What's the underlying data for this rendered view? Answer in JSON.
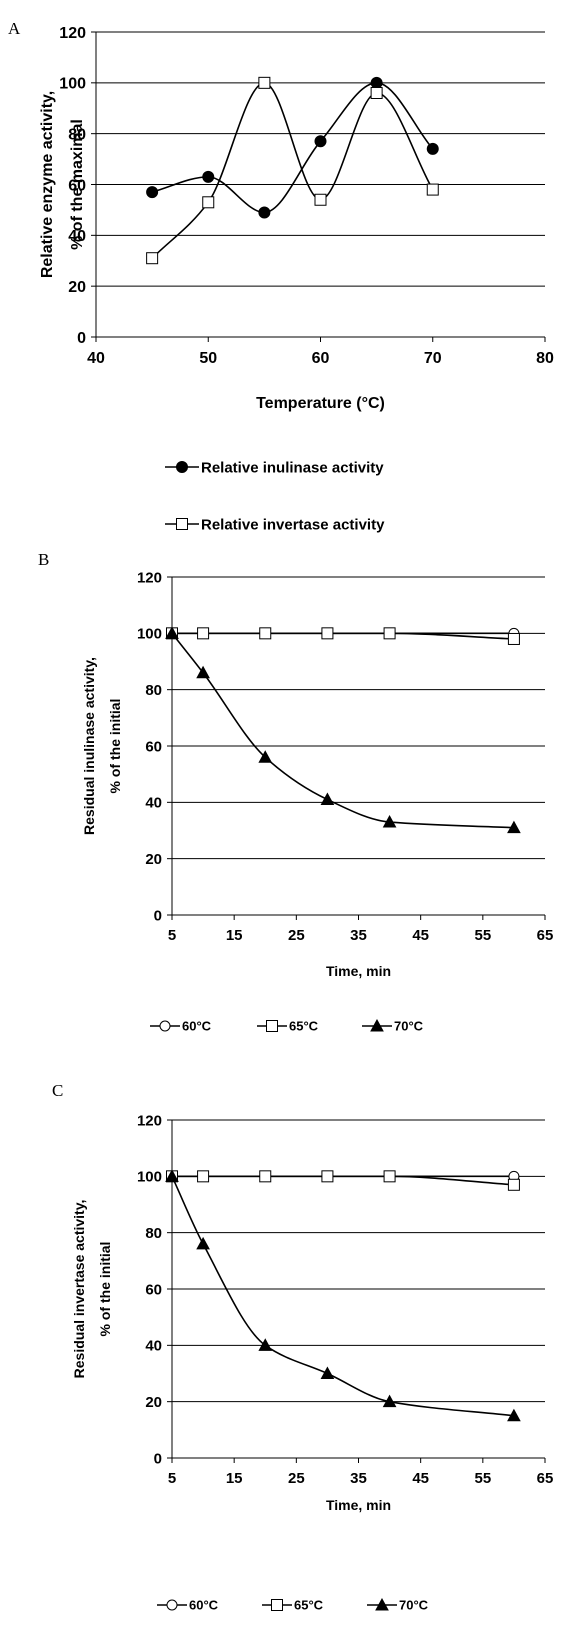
{
  "chart_data": [
    {
      "panel_label": "A",
      "type": "line",
      "ylabel": [
        "Relative enzyme activity,",
        "% of  the maximal"
      ],
      "xlabel": "Temperature (°C)",
      "xlim": [
        40,
        80
      ],
      "xticks": [
        40,
        50,
        60,
        70,
        80
      ],
      "ylim": [
        0,
        120
      ],
      "yticks": [
        0,
        20,
        40,
        60,
        80,
        100,
        120
      ],
      "grid": "horizontal",
      "smooth": true,
      "legend_position": "bottom",
      "series": [
        {
          "name": "Relative inulinase activity",
          "marker": "filled-circle",
          "x": [
            45,
            50,
            55,
            60,
            65,
            70
          ],
          "y": [
            57,
            63,
            49,
            77,
            100,
            74
          ]
        },
        {
          "name": "Relative invertase activity",
          "marker": "open-square",
          "x": [
            45,
            50,
            55,
            60,
            65,
            70
          ],
          "y": [
            31,
            53,
            100,
            54,
            96,
            58
          ]
        }
      ]
    },
    {
      "panel_label": "B",
      "type": "line",
      "ylabel": [
        "Residual inulinase activity,",
        "% of  the initial"
      ],
      "xlabel": "Time, min",
      "xlim": [
        5,
        65
      ],
      "xticks": [
        5,
        15,
        25,
        35,
        45,
        55,
        65
      ],
      "ylim": [
        0,
        120
      ],
      "yticks": [
        0,
        20,
        40,
        60,
        80,
        100,
        120
      ],
      "grid": "horizontal",
      "smooth": true,
      "legend_position": "bottom",
      "series": [
        {
          "name": "60°C",
          "marker": "open-circle",
          "x": [
            5,
            10,
            20,
            30,
            40,
            60
          ],
          "y": [
            100,
            100,
            100,
            100,
            100,
            100
          ]
        },
        {
          "name": "65°C",
          "marker": "open-square",
          "x": [
            5,
            10,
            20,
            30,
            40,
            60
          ],
          "y": [
            100,
            100,
            100,
            100,
            100,
            98
          ]
        },
        {
          "name": "70°C",
          "marker": "filled-triangle",
          "x": [
            5,
            10,
            20,
            30,
            40,
            60
          ],
          "y": [
            100,
            86,
            56,
            41,
            33,
            31
          ]
        }
      ]
    },
    {
      "panel_label": "C",
      "type": "line",
      "ylabel": [
        "Residual invertase activity,",
        "% of  the initial"
      ],
      "xlabel": "Time, min",
      "xlim": [
        5,
        65
      ],
      "xticks": [
        5,
        15,
        25,
        35,
        45,
        55,
        65
      ],
      "ylim": [
        0,
        120
      ],
      "yticks": [
        0,
        20,
        40,
        60,
        80,
        100,
        120
      ],
      "grid": "horizontal",
      "smooth": true,
      "legend_position": "bottom",
      "series": [
        {
          "name": "60°C",
          "marker": "open-circle",
          "x": [
            5,
            10,
            20,
            30,
            40,
            60
          ],
          "y": [
            100,
            100,
            100,
            100,
            100,
            100
          ]
        },
        {
          "name": "65°C",
          "marker": "open-square",
          "x": [
            5,
            10,
            20,
            30,
            40,
            60
          ],
          "y": [
            100,
            100,
            100,
            100,
            100,
            97
          ]
        },
        {
          "name": "70°C",
          "marker": "filled-triangle",
          "x": [
            5,
            10,
            20,
            30,
            40,
            60
          ],
          "y": [
            100,
            76,
            40,
            30,
            20,
            15
          ]
        }
      ]
    }
  ]
}
